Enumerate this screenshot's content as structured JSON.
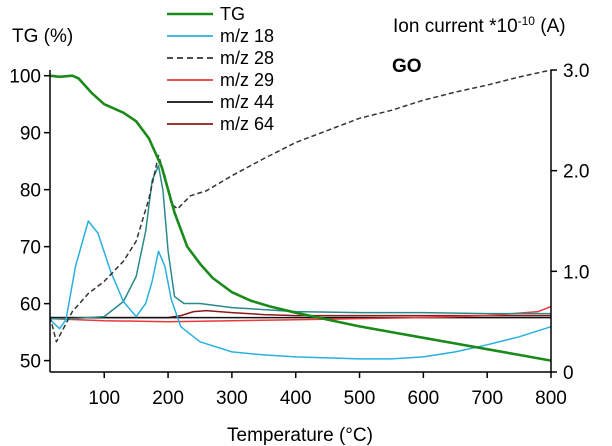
{
  "chart_data": {
    "type": "line",
    "title": "",
    "annotation": "GO",
    "xlabel": "Temperature (°C)",
    "ylabel_left": "TG (%)",
    "ylabel_right": "Ion current *10",
    "ylabel_right_exp": "-10",
    "ylabel_right_unit": " (A)",
    "xlim": [
      15,
      800
    ],
    "ylim_left": [
      48,
      101
    ],
    "ylim_right": [
      0,
      3.0
    ],
    "x_ticks": [
      "100",
      "200",
      "300",
      "400",
      "500",
      "600",
      "700",
      "800"
    ],
    "y_left_ticks": [
      "50",
      "60",
      "70",
      "80",
      "90",
      "100"
    ],
    "y_right_ticks": [
      "0",
      "1.0",
      "2.0",
      "3.0"
    ],
    "grid": false,
    "legend_position": "top-center",
    "colors": {
      "TG": "#1a8a1a",
      "m/z 18": "#29b0e0",
      "m/z 28": "#333333",
      "m/z 29": "#e8393c",
      "m/z 44": "#111111",
      "m/z 64": "#8b1a1a",
      "m/z 44 curve": "#2a8a8a"
    },
    "series": [
      {
        "name": "TG",
        "axis": "left",
        "style": "solid",
        "x": [
          15,
          30,
          50,
          60,
          80,
          100,
          130,
          150,
          170,
          190,
          210,
          230,
          250,
          270,
          300,
          330,
          360,
          400,
          450,
          500,
          550,
          600,
          650,
          700,
          750,
          800
        ],
        "y": [
          100,
          99.8,
          100,
          99.5,
          97,
          95,
          93.5,
          92,
          89,
          84,
          76,
          70,
          67,
          64.5,
          62,
          60.5,
          59.5,
          58.4,
          57.2,
          56,
          55,
          54,
          53,
          52,
          51,
          50
        ]
      },
      {
        "name": "m/z 18",
        "axis": "right",
        "style": "solid",
        "x": [
          15,
          30,
          40,
          55,
          75,
          90,
          110,
          130,
          150,
          165,
          175,
          185,
          195,
          205,
          220,
          250,
          300,
          350,
          400,
          450,
          500,
          550,
          600,
          650,
          700,
          750,
          800
        ],
        "y": [
          0.52,
          0.43,
          0.52,
          1.05,
          1.5,
          1.38,
          1.0,
          0.7,
          0.55,
          0.68,
          0.9,
          1.2,
          1.05,
          0.72,
          0.45,
          0.3,
          0.2,
          0.17,
          0.15,
          0.14,
          0.13,
          0.13,
          0.15,
          0.2,
          0.27,
          0.35,
          0.45
        ]
      },
      {
        "name": "m/z 28",
        "axis": "right",
        "style": "dashed",
        "x": [
          15,
          25,
          35,
          50,
          75,
          100,
          130,
          150,
          170,
          185,
          195,
          205,
          215,
          235,
          260,
          300,
          350,
          400,
          450,
          500,
          550,
          600,
          650,
          700,
          750,
          800
        ],
        "y": [
          0.55,
          0.3,
          0.42,
          0.6,
          0.78,
          0.9,
          1.1,
          1.3,
          1.72,
          2.15,
          1.95,
          1.67,
          1.62,
          1.75,
          1.8,
          1.95,
          2.12,
          2.28,
          2.4,
          2.52,
          2.6,
          2.7,
          2.78,
          2.85,
          2.93,
          3.0
        ]
      },
      {
        "name": "m/z 29",
        "axis": "right",
        "style": "solid",
        "x": [
          15,
          100,
          200,
          300,
          400,
          500,
          600,
          700,
          780,
          800
        ],
        "y": [
          0.53,
          0.51,
          0.5,
          0.51,
          0.52,
          0.53,
          0.54,
          0.56,
          0.6,
          0.65
        ]
      },
      {
        "name": "m/z 44",
        "axis": "right",
        "style": "solid",
        "x": [
          15,
          100,
          200,
          300,
          400,
          500,
          600,
          700,
          800
        ],
        "y": [
          0.54,
          0.54,
          0.54,
          0.54,
          0.54,
          0.54,
          0.54,
          0.54,
          0.54
        ]
      },
      {
        "name": "m/z 64",
        "axis": "right",
        "style": "solid",
        "x": [
          15,
          100,
          200,
          220,
          240,
          260,
          300,
          350,
          400,
          500,
          600,
          700,
          800
        ],
        "y": [
          0.54,
          0.54,
          0.54,
          0.56,
          0.6,
          0.61,
          0.59,
          0.57,
          0.56,
          0.56,
          0.56,
          0.56,
          0.56
        ]
      },
      {
        "name": "",
        "color_key": "m/z 44 curve",
        "axis": "right",
        "style": "solid",
        "x": [
          15,
          50,
          100,
          130,
          150,
          165,
          175,
          185,
          192,
          200,
          210,
          225,
          250,
          300,
          400,
          500,
          600,
          700,
          800
        ],
        "y": [
          0.53,
          0.53,
          0.55,
          0.7,
          0.95,
          1.4,
          1.9,
          2.05,
          1.8,
          1.2,
          0.75,
          0.68,
          0.68,
          0.64,
          0.6,
          0.59,
          0.59,
          0.58,
          0.58
        ]
      }
    ]
  }
}
